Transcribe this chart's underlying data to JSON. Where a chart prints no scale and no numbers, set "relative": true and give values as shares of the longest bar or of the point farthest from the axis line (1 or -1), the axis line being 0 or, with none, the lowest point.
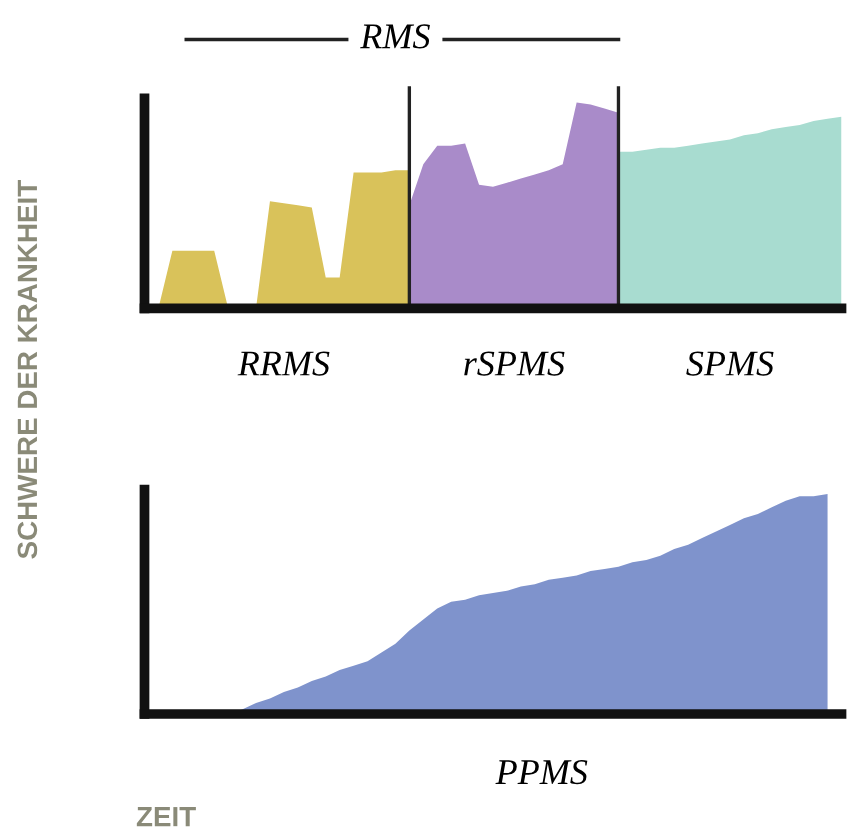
{
  "chart_data": [
    {
      "type": "area",
      "relative": true,
      "title": "RMS",
      "ylabel": "SCHWERE DER KRANKHEIT",
      "legend": false,
      "annotations": [
        "RRMS",
        "rSPMS",
        "SPMS"
      ],
      "categories": [
        null,
        null,
        null,
        null,
        null,
        null,
        null,
        null,
        null,
        null,
        null,
        null,
        null,
        null,
        null,
        null,
        null,
        null,
        null,
        null,
        null,
        null,
        null,
        null,
        null,
        null,
        null,
        null,
        null,
        null,
        null,
        null,
        null,
        null,
        null,
        null,
        null,
        null,
        null,
        null,
        null,
        null,
        null,
        null,
        null,
        null,
        null,
        null,
        null,
        null,
        null
      ],
      "series": [
        {
          "color": "#d9c25a",
          "values": [
            null,
            0,
            0.28,
            0.28,
            0.28,
            0.28,
            0,
            0,
            0,
            0.52,
            0.51,
            0.5,
            0.49,
            0.15,
            0.15,
            0.66,
            0.66,
            0.66,
            0.67,
            0.67,
            null,
            null,
            null,
            null,
            null,
            null,
            null,
            null,
            null,
            null,
            null,
            null,
            null,
            null,
            null,
            null,
            null,
            null,
            null,
            null,
            null,
            null,
            null,
            null,
            null,
            null,
            null,
            null,
            null,
            null,
            null
          ]
        },
        {
          "color": "#a98bc9",
          "values": [
            null,
            null,
            null,
            null,
            null,
            null,
            null,
            null,
            null,
            null,
            null,
            null,
            null,
            null,
            null,
            null,
            null,
            null,
            null,
            0.5,
            0.7,
            0.79,
            0.79,
            0.8,
            0.6,
            0.59,
            0.61,
            0.63,
            0.65,
            0.67,
            0.7,
            1.0,
            0.99,
            0.97,
            0.95,
            null,
            null,
            null,
            null,
            null,
            null,
            null,
            null,
            null,
            null,
            null,
            null,
            null,
            null,
            null,
            null
          ]
        },
        {
          "color": "#a8dcd0",
          "values": [
            null,
            null,
            null,
            null,
            null,
            null,
            null,
            null,
            null,
            null,
            null,
            null,
            null,
            null,
            null,
            null,
            null,
            null,
            null,
            null,
            null,
            null,
            null,
            null,
            null,
            null,
            null,
            null,
            null,
            null,
            null,
            null,
            null,
            null,
            0.76,
            0.76,
            0.77,
            0.78,
            0.78,
            0.79,
            0.8,
            0.81,
            0.82,
            0.84,
            0.85,
            0.87,
            0.88,
            0.89,
            0.91,
            0.92,
            0.93
          ]
        }
      ]
    },
    {
      "type": "area",
      "relative": true,
      "xlabel": "ZEIT",
      "legend": false,
      "annotations": [
        "PPMS"
      ],
      "categories": [
        null,
        null,
        null,
        null,
        null,
        null,
        null,
        null,
        null,
        null,
        null,
        null,
        null,
        null,
        null,
        null,
        null,
        null,
        null,
        null,
        null,
        null,
        null,
        null,
        null,
        null,
        null,
        null,
        null,
        null,
        null,
        null,
        null,
        null,
        null,
        null,
        null,
        null,
        null,
        null,
        null,
        null,
        null,
        null,
        null,
        null,
        null,
        null,
        null,
        null,
        null
      ],
      "series": [
        {
          "color": "#7f93cc",
          "values": [
            null,
            null,
            null,
            null,
            null,
            null,
            0,
            0.02,
            0.05,
            0.07,
            0.1,
            0.12,
            0.15,
            0.17,
            0.2,
            0.22,
            0.24,
            0.28,
            0.32,
            0.38,
            0.43,
            0.48,
            0.51,
            0.52,
            0.54,
            0.55,
            0.56,
            0.58,
            0.59,
            0.61,
            0.62,
            0.63,
            0.65,
            0.66,
            0.67,
            0.69,
            0.7,
            0.72,
            0.75,
            0.77,
            0.8,
            0.83,
            0.86,
            0.89,
            0.91,
            0.94,
            0.97,
            0.99,
            0.99,
            1.0,
            null
          ]
        }
      ]
    }
  ]
}
